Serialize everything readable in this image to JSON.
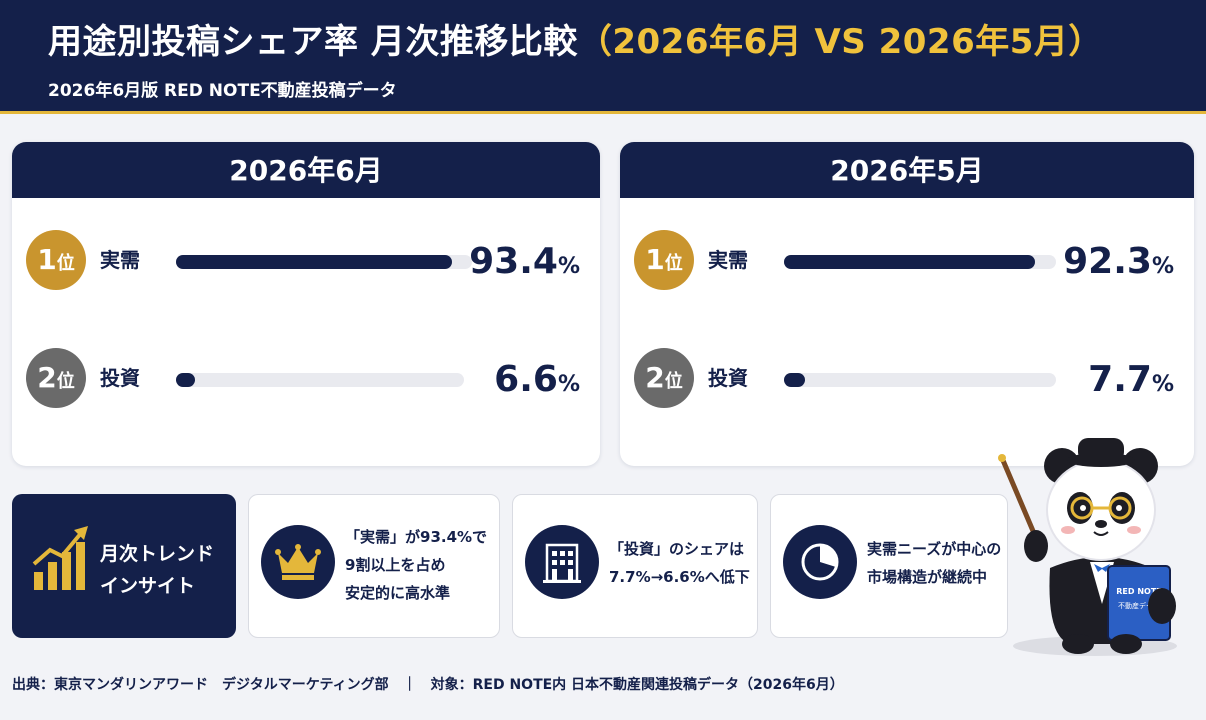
{
  "header": {
    "title_main": "用途別投稿シェア率 月次推移比較",
    "title_accent": "（2026年6月 VS 2026年5月）",
    "subtitle": "2026年6月版 RED NOTE不動産投稿データ"
  },
  "chart_data": [
    {
      "type": "bar",
      "title": "2026年6月",
      "categories": [
        "実需",
        "投資"
      ],
      "ranks": [
        "1",
        "2"
      ],
      "rank_suffix": "位",
      "values": [
        93.4,
        6.6
      ],
      "value_labels": [
        "93.4",
        "6.6"
      ],
      "unit": "%",
      "ylim": [
        0,
        100
      ]
    },
    {
      "type": "bar",
      "title": "2026年5月",
      "categories": [
        "実需",
        "投資"
      ],
      "ranks": [
        "1",
        "2"
      ],
      "rank_suffix": "位",
      "values": [
        92.3,
        7.7
      ],
      "value_labels": [
        "92.3",
        "7.7"
      ],
      "unit": "%",
      "ylim": [
        0,
        100
      ]
    }
  ],
  "insights": {
    "trend_lines": [
      "月次トレンド",
      "インサイト"
    ],
    "cards": [
      {
        "icon": "crown-icon",
        "lines": [
          "「実需」が93.4%で",
          "9割以上を占め",
          "安定的に高水準"
        ]
      },
      {
        "icon": "building-icon",
        "lines": [
          "「投資」のシェアは",
          "7.7%→6.6%へ低下"
        ]
      },
      {
        "icon": "pie-chart-icon",
        "lines": [
          "実需ニーズが中心の",
          "市場構造が継続中"
        ]
      }
    ]
  },
  "mascot": {
    "book_line1": "RED NOTE",
    "book_line2": "不動産データ"
  },
  "footer": {
    "source": "出典：東京マンダリンアワード　デジタルマーケティング部",
    "separator": "｜",
    "target": "対象：RED NOTE内 日本不動産関連投稿データ（2026年6月）"
  },
  "colors": {
    "navy": "#14204a",
    "gold": "#e4b73a",
    "rank1": "#c9952e",
    "rank2": "#6a6a6a",
    "track": "#e9eaef"
  }
}
